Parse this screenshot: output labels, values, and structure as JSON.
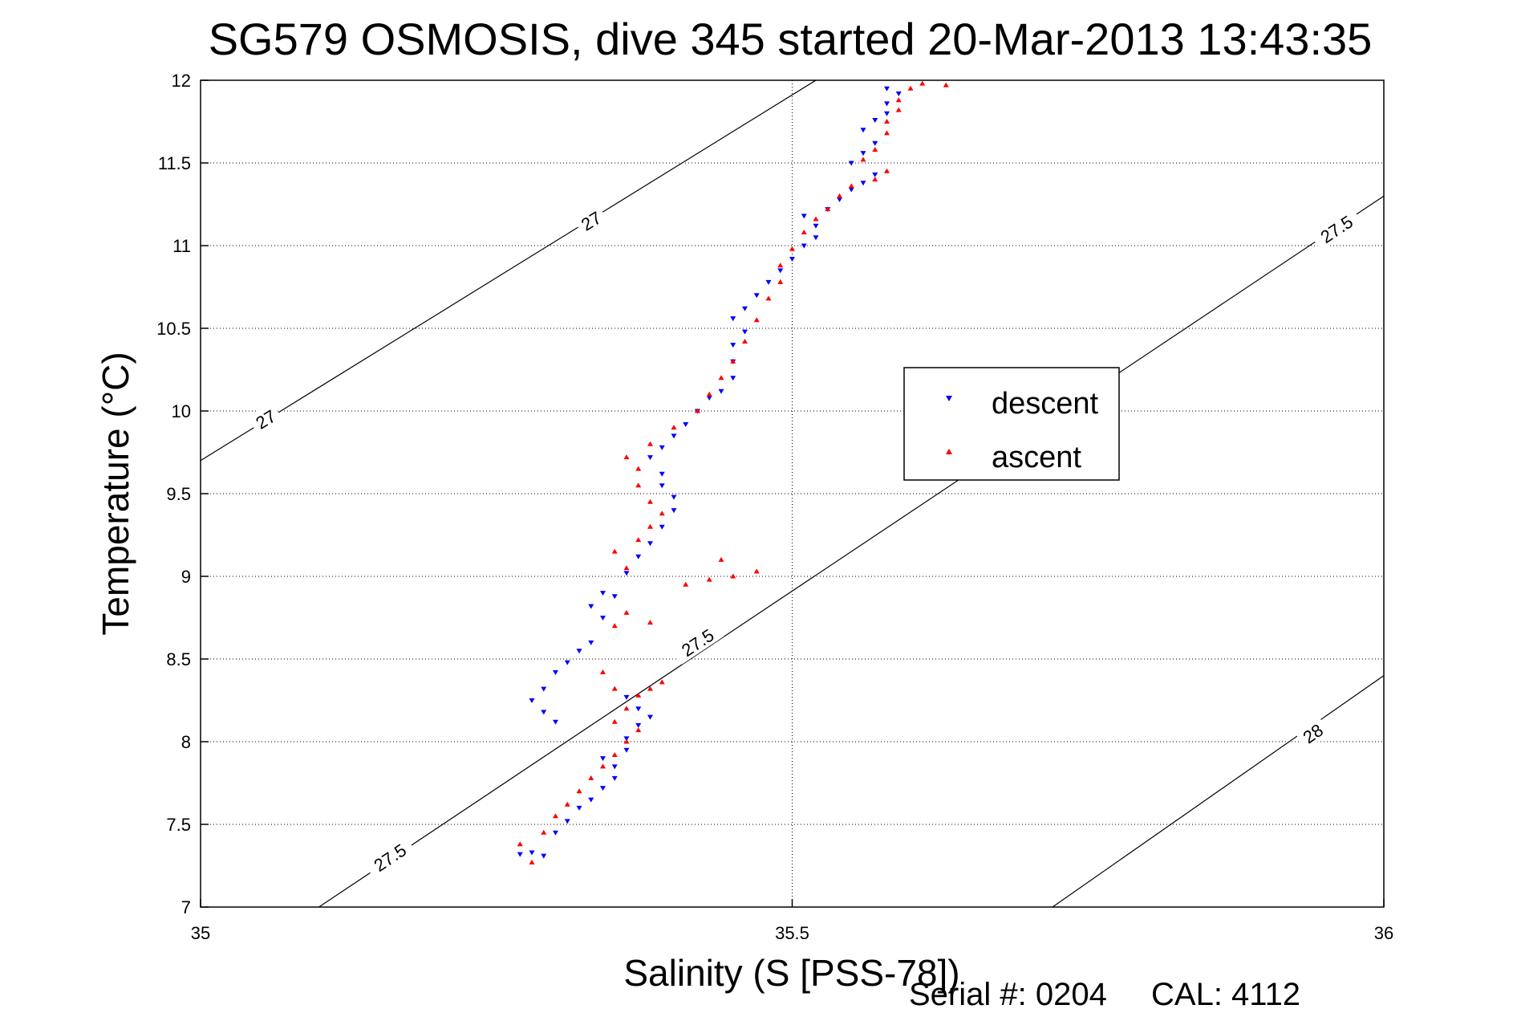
{
  "chart_data": {
    "type": "scatter",
    "title": "SG579 OSMOSIS, dive 345 started 20-Mar-2013 13:43:35",
    "xlabel": "Salinity (S [PSS-78])",
    "ylabel": "Temperature (°C)",
    "xlim": [
      35,
      36
    ],
    "ylim": [
      7,
      12
    ],
    "x_ticks": [
      "35",
      "35.5",
      "36"
    ],
    "y_ticks": [
      "7",
      "7.5",
      "8",
      "8.5",
      "9",
      "9.5",
      "10",
      "10.5",
      "11",
      "11.5",
      "12"
    ],
    "grid": true,
    "legend_position": "right-center",
    "contours": [
      {
        "label": "27",
        "line": [
          [
            35.0,
            9.7
          ],
          [
            35.52,
            12.0
          ]
        ],
        "label_at": [
          [
            35.055,
            9.95
          ],
          [
            35.33,
            11.15
          ]
        ]
      },
      {
        "label": "27.5",
        "line": [
          [
            35.1,
            7.0
          ],
          [
            36.0,
            11.3
          ]
        ],
        "label_at": [
          [
            35.16,
            7.3
          ],
          [
            35.42,
            8.6
          ],
          [
            35.96,
            11.1
          ]
        ]
      },
      {
        "label": "28",
        "line": [
          [
            35.72,
            7.0
          ],
          [
            36.0,
            8.4
          ]
        ],
        "label_at": [
          [
            35.94,
            8.05
          ]
        ]
      }
    ],
    "series": [
      {
        "name": "descent",
        "color": "#0000ff",
        "marker": "triangle-down",
        "points": [
          [
            35.29,
            7.31
          ],
          [
            35.28,
            7.33
          ],
          [
            35.27,
            7.32
          ],
          [
            35.3,
            7.45
          ],
          [
            35.31,
            7.52
          ],
          [
            35.32,
            7.6
          ],
          [
            35.33,
            7.65
          ],
          [
            35.34,
            7.72
          ],
          [
            35.35,
            7.78
          ],
          [
            35.35,
            7.85
          ],
          [
            35.34,
            7.9
          ],
          [
            35.36,
            7.95
          ],
          [
            35.36,
            8.02
          ],
          [
            35.37,
            8.1
          ],
          [
            35.38,
            8.15
          ],
          [
            35.37,
            8.2
          ],
          [
            35.36,
            8.27
          ],
          [
            35.3,
            8.12
          ],
          [
            35.29,
            8.18
          ],
          [
            35.28,
            8.25
          ],
          [
            35.29,
            8.32
          ],
          [
            35.3,
            8.42
          ],
          [
            35.31,
            8.48
          ],
          [
            35.32,
            8.55
          ],
          [
            35.33,
            8.6
          ],
          [
            35.34,
            8.75
          ],
          [
            35.33,
            8.82
          ],
          [
            35.34,
            8.9
          ],
          [
            35.35,
            8.88
          ],
          [
            35.36,
            9.02
          ],
          [
            35.37,
            9.12
          ],
          [
            35.38,
            9.2
          ],
          [
            35.39,
            9.3
          ],
          [
            35.4,
            9.4
          ],
          [
            35.4,
            9.48
          ],
          [
            35.39,
            9.55
          ],
          [
            35.39,
            9.62
          ],
          [
            35.38,
            9.72
          ],
          [
            35.39,
            9.78
          ],
          [
            35.4,
            9.85
          ],
          [
            35.41,
            9.92
          ],
          [
            35.42,
            10.0
          ],
          [
            35.43,
            10.08
          ],
          [
            35.44,
            10.12
          ],
          [
            35.45,
            10.2
          ],
          [
            35.45,
            10.3
          ],
          [
            35.45,
            10.4
          ],
          [
            35.46,
            10.48
          ],
          [
            35.45,
            10.56
          ],
          [
            35.46,
            10.62
          ],
          [
            35.47,
            10.7
          ],
          [
            35.48,
            10.78
          ],
          [
            35.49,
            10.85
          ],
          [
            35.5,
            10.92
          ],
          [
            35.51,
            11.0
          ],
          [
            35.52,
            11.05
          ],
          [
            35.52,
            11.12
          ],
          [
            35.51,
            11.18
          ],
          [
            35.53,
            11.22
          ],
          [
            35.54,
            11.28
          ],
          [
            35.55,
            11.34
          ],
          [
            35.56,
            11.38
          ],
          [
            35.57,
            11.43
          ],
          [
            35.55,
            11.5
          ],
          [
            35.56,
            11.56
          ],
          [
            35.57,
            11.62
          ],
          [
            35.56,
            11.7
          ],
          [
            35.57,
            11.76
          ],
          [
            35.58,
            11.8
          ],
          [
            35.58,
            11.86
          ],
          [
            35.59,
            11.92
          ],
          [
            35.58,
            11.95
          ]
        ]
      },
      {
        "name": "ascent",
        "color": "#ff0000",
        "marker": "triangle-up",
        "points": [
          [
            35.28,
            7.27
          ],
          [
            35.27,
            7.38
          ],
          [
            35.29,
            7.45
          ],
          [
            35.3,
            7.55
          ],
          [
            35.31,
            7.62
          ],
          [
            35.32,
            7.7
          ],
          [
            35.33,
            7.78
          ],
          [
            35.34,
            7.85
          ],
          [
            35.35,
            7.92
          ],
          [
            35.36,
            8.0
          ],
          [
            35.37,
            8.07
          ],
          [
            35.35,
            8.12
          ],
          [
            35.36,
            8.2
          ],
          [
            35.37,
            8.28
          ],
          [
            35.38,
            8.32
          ],
          [
            35.39,
            8.36
          ],
          [
            35.35,
            8.32
          ],
          [
            35.34,
            8.42
          ],
          [
            35.35,
            8.7
          ],
          [
            35.36,
            8.78
          ],
          [
            35.38,
            8.72
          ],
          [
            35.41,
            8.95
          ],
          [
            35.43,
            8.98
          ],
          [
            35.45,
            9.0
          ],
          [
            35.47,
            9.03
          ],
          [
            35.44,
            9.1
          ],
          [
            35.36,
            9.05
          ],
          [
            35.35,
            9.15
          ],
          [
            35.37,
            9.22
          ],
          [
            35.38,
            9.3
          ],
          [
            35.39,
            9.38
          ],
          [
            35.38,
            9.45
          ],
          [
            35.37,
            9.55
          ],
          [
            35.37,
            9.65
          ],
          [
            35.36,
            9.72
          ],
          [
            35.38,
            9.8
          ],
          [
            35.4,
            9.9
          ],
          [
            35.42,
            10.0
          ],
          [
            35.43,
            10.1
          ],
          [
            35.44,
            10.2
          ],
          [
            35.45,
            10.3
          ],
          [
            35.46,
            10.42
          ],
          [
            35.47,
            10.55
          ],
          [
            35.48,
            10.68
          ],
          [
            35.49,
            10.78
          ],
          [
            35.49,
            10.88
          ],
          [
            35.5,
            10.98
          ],
          [
            35.51,
            11.08
          ],
          [
            35.52,
            11.16
          ],
          [
            35.53,
            11.22
          ],
          [
            35.54,
            11.3
          ],
          [
            35.55,
            11.36
          ],
          [
            35.57,
            11.4
          ],
          [
            35.58,
            11.45
          ],
          [
            35.56,
            11.52
          ],
          [
            35.57,
            11.58
          ],
          [
            35.58,
            11.68
          ],
          [
            35.58,
            11.75
          ],
          [
            35.59,
            11.82
          ],
          [
            35.59,
            11.88
          ],
          [
            35.6,
            11.95
          ],
          [
            35.61,
            11.98
          ],
          [
            35.63,
            11.97
          ]
        ]
      }
    ]
  },
  "footer": {
    "serial_label": "Serial #: 0204",
    "cal_label": "CAL: 4112"
  }
}
